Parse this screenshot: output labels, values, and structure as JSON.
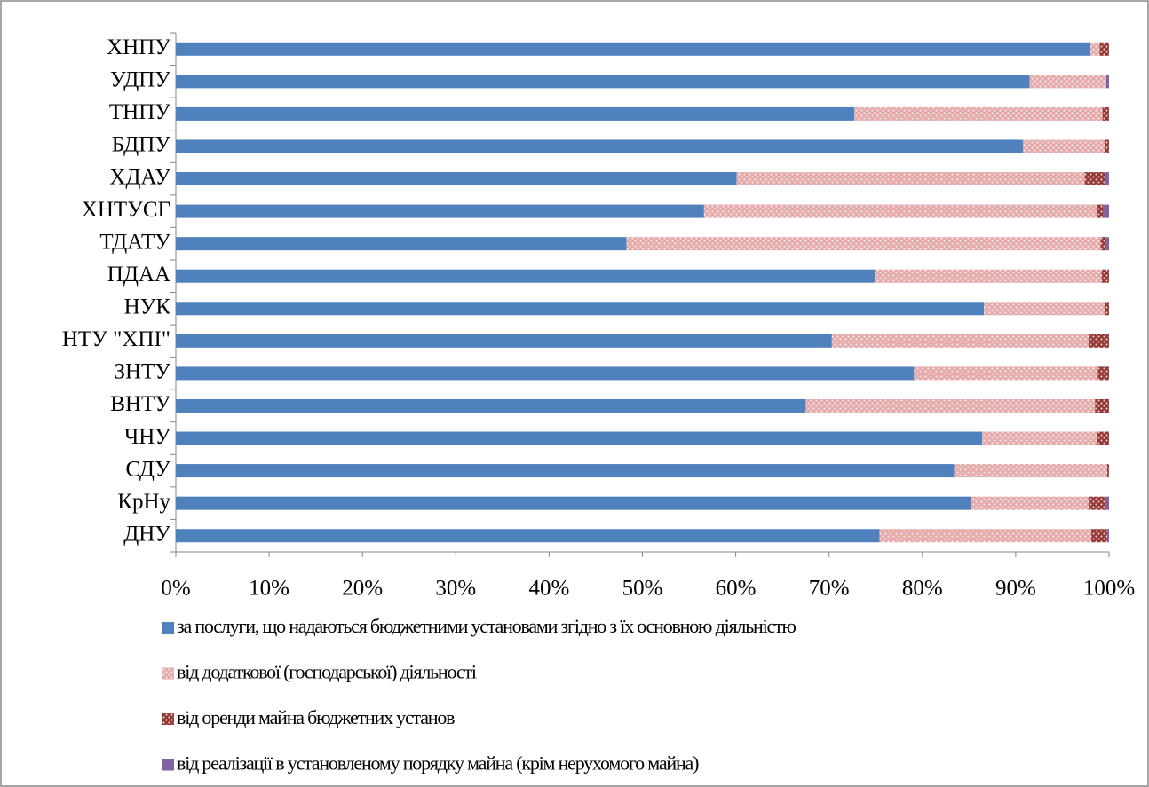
{
  "chart_data": {
    "type": "stacked-bar-horizontal",
    "categories": [
      "ХНПУ",
      "УДПУ",
      "ТНПУ",
      "БДПУ",
      "ХДАУ",
      "ХНТУСГ",
      "ТДАТУ",
      "ПДАА",
      "НУК",
      "НТУ \"ХПІ\"",
      "ЗНТУ",
      "ВНТУ",
      "ЧНУ",
      "СДУ",
      "КрНу",
      "ДНУ"
    ],
    "series": [
      {
        "name": "за послуги, що надаються бюджетними установами згідно з їх основною діяльністю",
        "color": "#4f81bd",
        "pattern": "solid",
        "values": [
          98,
          91.5,
          72.7,
          90.8,
          60.1,
          56.6,
          48.3,
          74.9,
          86.6,
          70.3,
          79.1,
          67.5,
          86.4,
          83.4,
          85.2,
          75.4
        ]
      },
      {
        "name": "від додаткової (господарської) діяльності",
        "color": "#e4a9a8",
        "pattern": "dots",
        "values": [
          1,
          8.2,
          26.6,
          8.7,
          37.3,
          42.1,
          50.8,
          24.3,
          12.9,
          27.5,
          19.7,
          31,
          12.3,
          16.4,
          12.6,
          22.7
        ]
      },
      {
        "name": "від оренди майна бюджетних установ",
        "color": "#943634",
        "pattern": "dots",
        "values": [
          1,
          0,
          0.7,
          0.5,
          2.2,
          0.7,
          0.6,
          0.8,
          0.5,
          2.2,
          1.2,
          1.5,
          1.3,
          0.2,
          1.9,
          1.7
        ]
      },
      {
        "name": "від реалізації в установленому порядку майна (крім нерухомого майна)",
        "color": "#8064a2",
        "pattern": "solid",
        "values": [
          0,
          0.3,
          0,
          0,
          0.4,
          0.6,
          0.3,
          0,
          0,
          0,
          0,
          0,
          0,
          0,
          0.3,
          0.2
        ]
      }
    ],
    "xlim": [
      0,
      100
    ],
    "xticks": [
      {
        "value": 0,
        "label": "0%"
      },
      {
        "value": 10,
        "label": "10%"
      },
      {
        "value": 20,
        "label": "20%"
      },
      {
        "value": 30,
        "label": "30%"
      },
      {
        "value": 40,
        "label": "40%"
      },
      {
        "value": 50,
        "label": "50%"
      },
      {
        "value": 60,
        "label": "60%"
      },
      {
        "value": 70,
        "label": "70%"
      },
      {
        "value": 80,
        "label": "80%"
      },
      {
        "value": 90,
        "label": "90%"
      },
      {
        "value": 100,
        "label": "100%"
      }
    ],
    "grid": false,
    "legend": "bottom"
  }
}
